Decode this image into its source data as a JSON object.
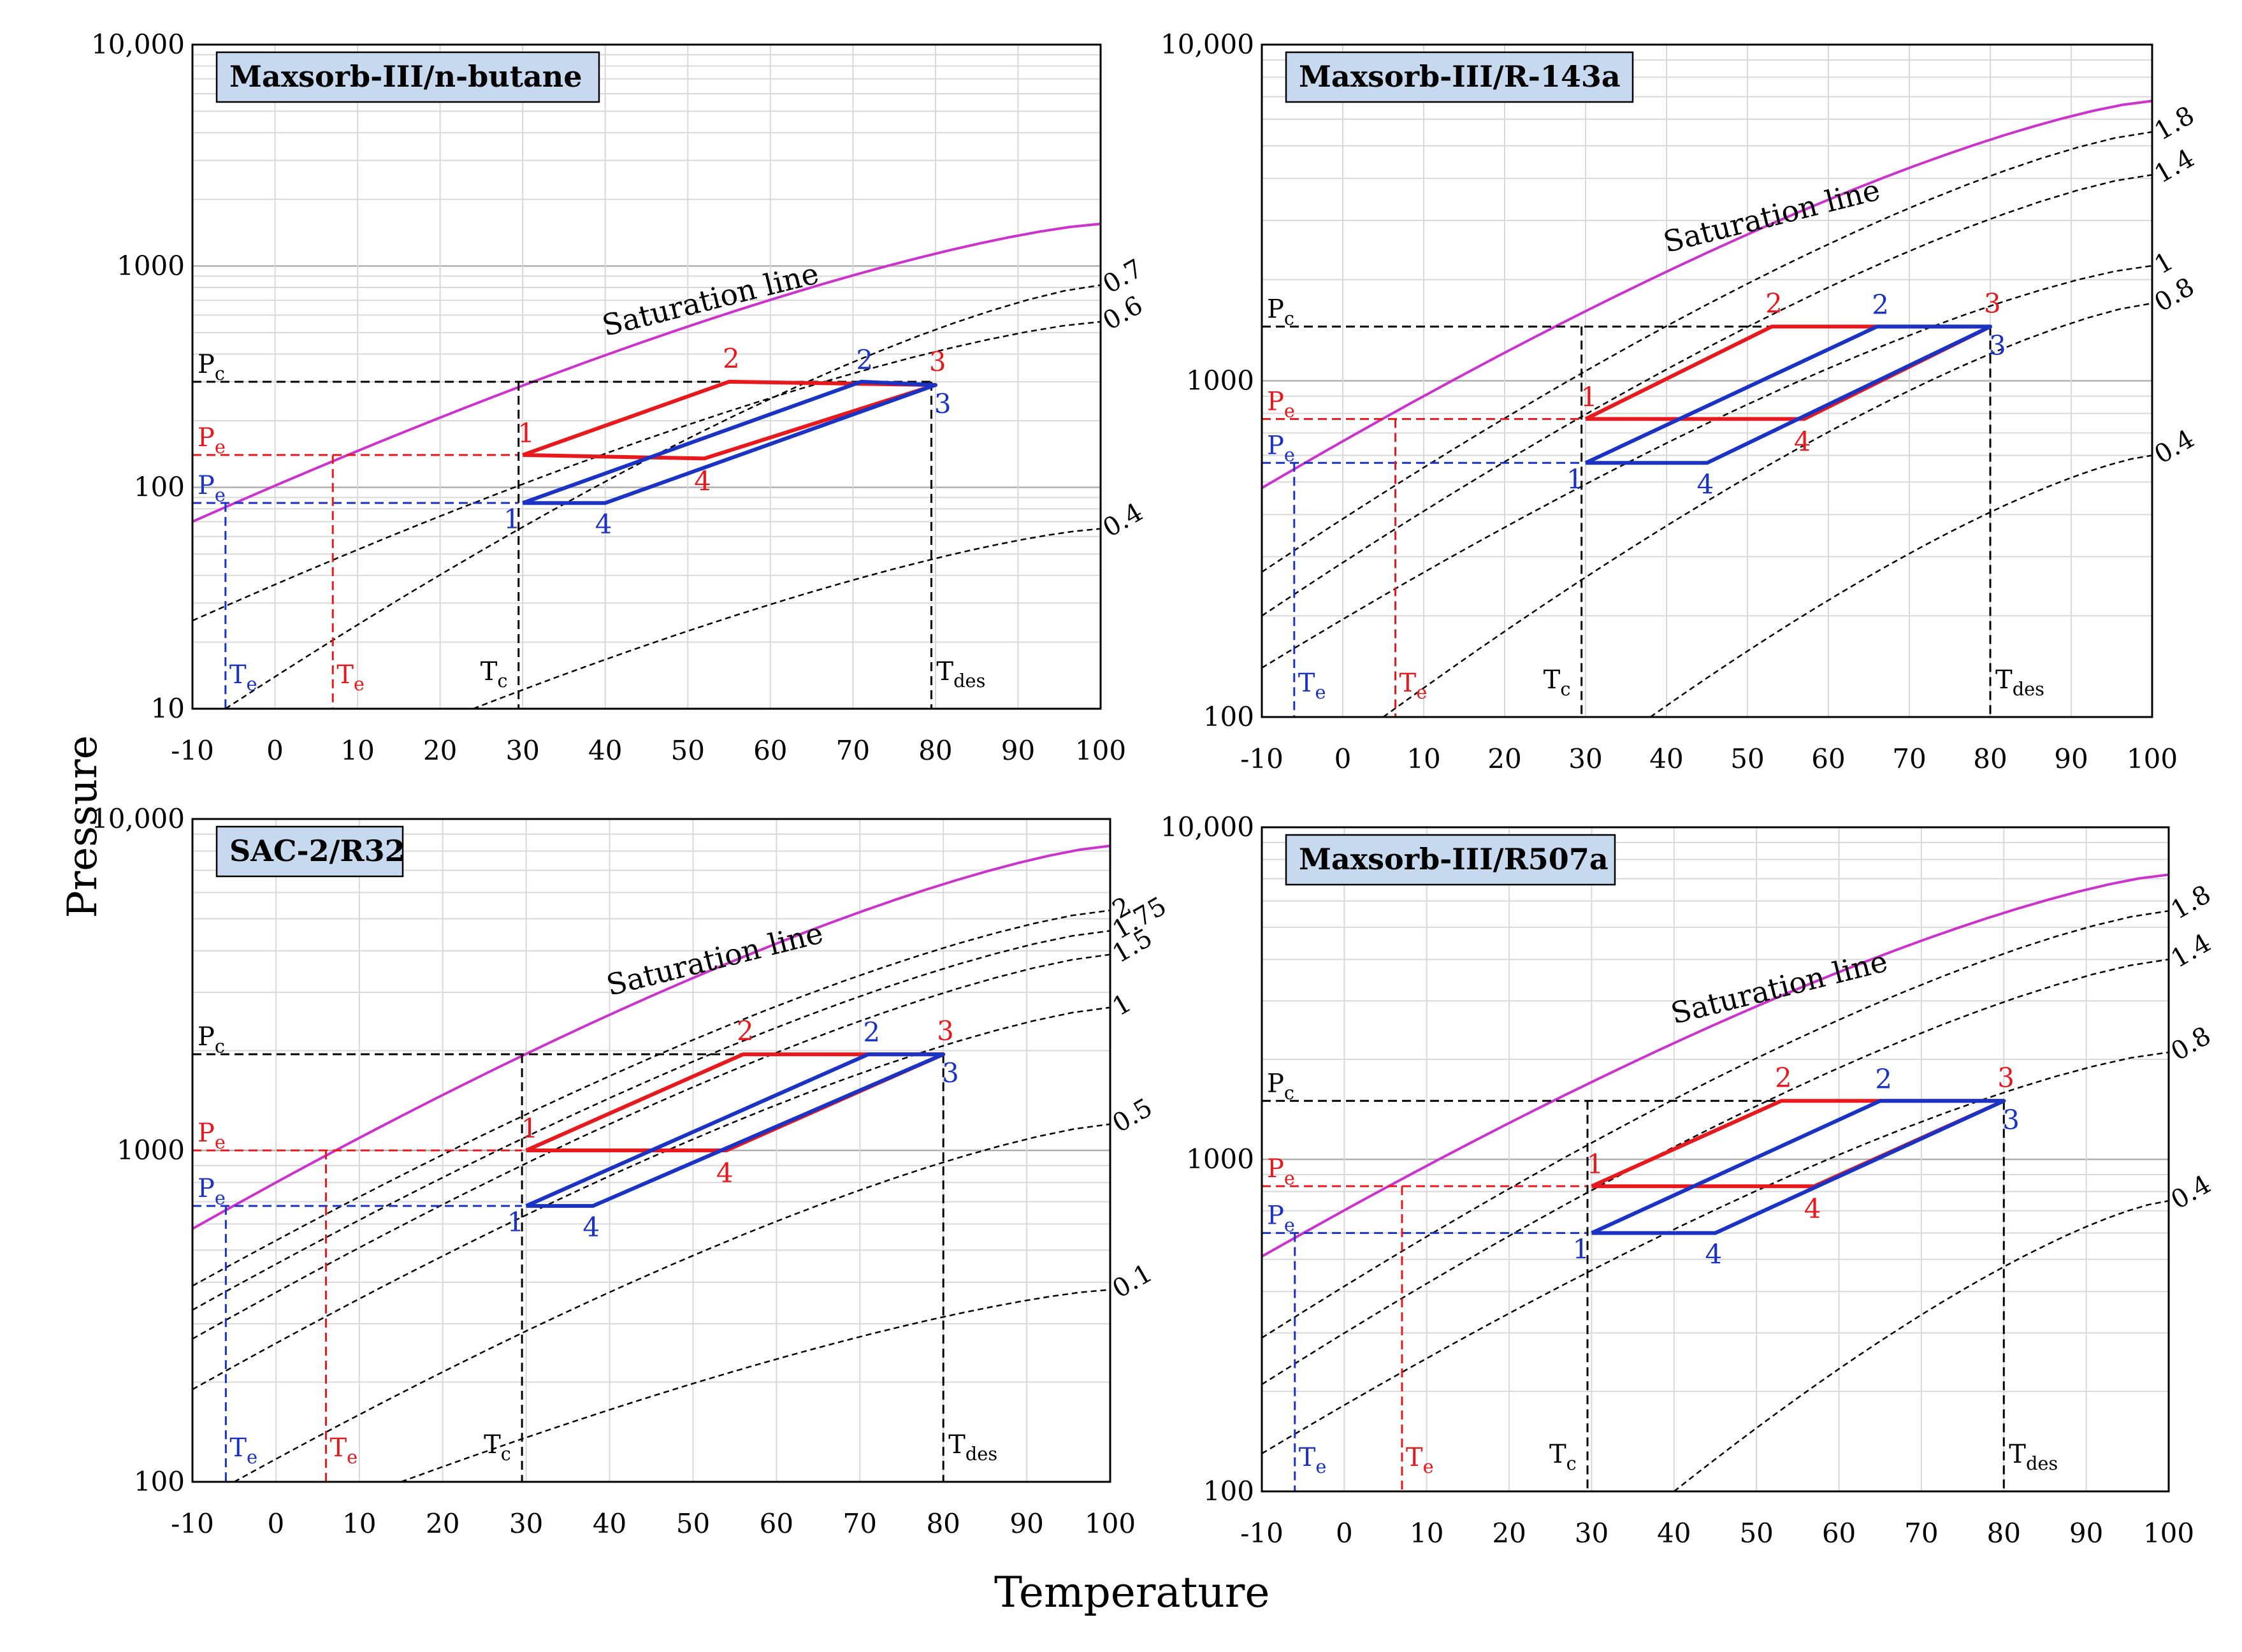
{
  "figure": {
    "ylabel": "Pressure",
    "xlabel": "Temperature"
  },
  "colors": {
    "saturation": "#cc33cc",
    "red": "#e8191d",
    "blue": "#1a33c4",
    "box_fill": "#c6d9ee",
    "grid": "#d9d9d9"
  },
  "chart_data": [
    {
      "type": "line",
      "title": "Maxsorb-III/n-butane",
      "xlabel": "",
      "ylabel": "",
      "scale_y": "log",
      "xlim": [
        -10,
        100
      ],
      "ylim": [
        10,
        10000
      ],
      "x_ticks": [
        "-10",
        "0",
        "10",
        "20",
        "30",
        "40",
        "50",
        "60",
        "70",
        "80",
        "90",
        "100"
      ],
      "y_ticks": [
        {
          "v": 10,
          "t": "10"
        },
        {
          "v": 100,
          "t": "100"
        },
        {
          "v": 1000,
          "t": "1000"
        },
        {
          "v": 10000,
          "t": "10,000"
        }
      ],
      "saturation_label": "Saturation line",
      "saturation": {
        "x": [
          -10,
          100
        ],
        "y": [
          70,
          1550
        ]
      },
      "isosteres": [
        {
          "label": "0.7",
          "x": [
            -6,
            100
          ],
          "y": [
            10,
            820
          ]
        },
        {
          "label": "0.6",
          "x": [
            -10,
            100
          ],
          "y": [
            25,
            560
          ]
        },
        {
          "label": "0.4",
          "x": [
            24,
            100
          ],
          "y": [
            10,
            65
          ]
        }
      ],
      "Pc": 300,
      "Pe_red": 140,
      "Pe_blue": 85,
      "Tc": 29.5,
      "Tdes": 79.5,
      "Te_red": 7,
      "Te_blue": -6,
      "red_cycle": [
        [
          30,
          140
        ],
        [
          55,
          300
        ],
        [
          80,
          290
        ],
        [
          52,
          135
        ],
        [
          30,
          140
        ]
      ],
      "blue_cycle": [
        [
          30,
          85
        ],
        [
          71,
          300
        ],
        [
          80,
          290
        ],
        [
          40,
          85
        ],
        [
          30,
          85
        ]
      ],
      "red_labels": [
        {
          "t": "1",
          "x": 30,
          "y": 140
        },
        {
          "t": "2",
          "x": 55,
          "y": 300
        },
        {
          "t": "3",
          "x": 80,
          "y": 290
        },
        {
          "t": "4",
          "x": 52,
          "y": 135
        }
      ],
      "blue_labels": [
        {
          "t": "1",
          "x": 30,
          "y": 85
        },
        {
          "t": "2",
          "x": 71,
          "y": 300
        },
        {
          "t": "3",
          "x": 80,
          "y": 290
        },
        {
          "t": "4",
          "x": 40,
          "y": 85
        }
      ],
      "guide_labels": {
        "Pc": "P",
        "Pe": "P",
        "Te": "T",
        "Tc": "T",
        "Tdes": "T",
        "sub_c": "c",
        "sub_e": "e",
        "sub_des": "des"
      }
    },
    {
      "type": "line",
      "title": "Maxsorb-III/R-143a",
      "xlabel": "",
      "ylabel": "",
      "scale_y": "log",
      "xlim": [
        -10,
        100
      ],
      "ylim": [
        100,
        10000
      ],
      "x_ticks": [
        "-10",
        "0",
        "10",
        "20",
        "30",
        "40",
        "50",
        "60",
        "70",
        "80",
        "90",
        "100"
      ],
      "y_ticks": [
        {
          "v": 100,
          "t": "100"
        },
        {
          "v": 1000,
          "t": "1000"
        },
        {
          "v": 10000,
          "t": "10,000"
        }
      ],
      "saturation_label": "Saturation line",
      "saturation": {
        "x": [
          -10,
          100
        ],
        "y": [
          480,
          6800
        ]
      },
      "isosteres": [
        {
          "label": "1.8",
          "x": [
            -10,
            100
          ],
          "y": [
            270,
            5500
          ]
        },
        {
          "label": "1.4",
          "x": [
            -10,
            100
          ],
          "y": [
            200,
            4100
          ]
        },
        {
          "label": "1",
          "x": [
            -10,
            100
          ],
          "y": [
            140,
            2200
          ]
        },
        {
          "label": "0.8",
          "x": [
            5,
            100
          ],
          "y": [
            100,
            1700
          ]
        },
        {
          "label": "0.4",
          "x": [
            38,
            100
          ],
          "y": [
            100,
            600
          ]
        }
      ],
      "Pc": 1450,
      "Pe_red": 770,
      "Pe_blue": 570,
      "Tc": 29.5,
      "Tdes": 80,
      "Te_red": 6.5,
      "Te_blue": -6,
      "red_cycle": [
        [
          30,
          770
        ],
        [
          53,
          1450
        ],
        [
          80,
          1450
        ],
        [
          57,
          770
        ],
        [
          30,
          770
        ]
      ],
      "blue_cycle": [
        [
          30,
          570
        ],
        [
          66,
          1450
        ],
        [
          80,
          1450
        ],
        [
          45,
          570
        ],
        [
          30,
          570
        ]
      ],
      "red_labels": [
        {
          "t": "1",
          "x": 30,
          "y": 770
        },
        {
          "t": "2",
          "x": 53,
          "y": 1450
        },
        {
          "t": "3",
          "x": 80,
          "y": 1450
        },
        {
          "t": "4",
          "x": 57,
          "y": 770
        }
      ],
      "blue_labels": [
        {
          "t": "1",
          "x": 30,
          "y": 570
        },
        {
          "t": "2",
          "x": 66,
          "y": 1450
        },
        {
          "t": "3",
          "x": 80,
          "y": 1450
        },
        {
          "t": "4",
          "x": 45,
          "y": 570
        }
      ],
      "guide_labels": {
        "Pc": "P",
        "Pe": "P",
        "Te": "T",
        "Tc": "T",
        "Tdes": "T",
        "sub_c": "c",
        "sub_e": "e",
        "sub_des": "des"
      }
    },
    {
      "type": "line",
      "title": "SAC-2/R32",
      "xlabel": "",
      "ylabel": "",
      "scale_y": "log",
      "xlim": [
        -10,
        100
      ],
      "ylim": [
        100,
        10000
      ],
      "x_ticks": [
        "-10",
        "0",
        "10",
        "20",
        "30",
        "40",
        "50",
        "60",
        "70",
        "80",
        "90",
        "100"
      ],
      "y_ticks": [
        {
          "v": 100,
          "t": "100"
        },
        {
          "v": 1000,
          "t": "1000"
        },
        {
          "v": 10000,
          "t": "10,000"
        }
      ],
      "saturation_label": "Saturation line",
      "saturation": {
        "x": [
          -10,
          100
        ],
        "y": [
          580,
          8300
        ]
      },
      "isosteres": [
        {
          "label": "2",
          "x": [
            -10,
            100
          ],
          "y": [
            390,
            5300
          ]
        },
        {
          "label": "1.75",
          "x": [
            -10,
            100
          ],
          "y": [
            330,
            4600
          ]
        },
        {
          "label": "1.5",
          "x": [
            -10,
            100
          ],
          "y": [
            270,
            3900
          ]
        },
        {
          "label": "1",
          "x": [
            -10,
            100
          ],
          "y": [
            190,
            2700
          ]
        },
        {
          "label": "0.5",
          "x": [
            -5,
            100
          ],
          "y": [
            100,
            1200
          ]
        },
        {
          "label": "0.1",
          "x": [
            15,
            100
          ],
          "y": [
            100,
            380
          ]
        }
      ],
      "Pc": 1950,
      "Pe_red": 1000,
      "Pe_blue": 680,
      "Tc": 29.5,
      "Tdes": 80,
      "Te_red": 6,
      "Te_blue": -6,
      "red_cycle": [
        [
          30,
          1000
        ],
        [
          56,
          1950
        ],
        [
          80,
          1950
        ],
        [
          54,
          1000
        ],
        [
          30,
          1000
        ]
      ],
      "blue_cycle": [
        [
          30,
          680
        ],
        [
          71,
          1950
        ],
        [
          80,
          1950
        ],
        [
          38,
          680
        ],
        [
          30,
          680
        ]
      ],
      "red_labels": [
        {
          "t": "1",
          "x": 30,
          "y": 1000
        },
        {
          "t": "2",
          "x": 56,
          "y": 1950
        },
        {
          "t": "3",
          "x": 80,
          "y": 1950
        },
        {
          "t": "4",
          "x": 54,
          "y": 1000
        }
      ],
      "blue_labels": [
        {
          "t": "1",
          "x": 30,
          "y": 680
        },
        {
          "t": "2",
          "x": 71,
          "y": 1950
        },
        {
          "t": "3",
          "x": 80,
          "y": 1950
        },
        {
          "t": "4",
          "x": 38,
          "y": 680
        }
      ],
      "guide_labels": {
        "Pc": "P",
        "Pe": "P",
        "Te": "T",
        "Tc": "T",
        "Tdes": "T",
        "sub_c": "c",
        "sub_e": "e",
        "sub_des": "des"
      }
    },
    {
      "type": "line",
      "title": "Maxsorb-III/R507a",
      "xlabel": "",
      "ylabel": "",
      "scale_y": "log",
      "xlim": [
        -10,
        100
      ],
      "ylim": [
        100,
        10000
      ],
      "x_ticks": [
        "-10",
        "0",
        "10",
        "20",
        "30",
        "40",
        "50",
        "60",
        "70",
        "80",
        "90",
        "100"
      ],
      "y_ticks": [
        {
          "v": 100,
          "t": "100"
        },
        {
          "v": 1000,
          "t": "1000"
        },
        {
          "v": 10000,
          "t": "10,000"
        }
      ],
      "saturation_label": "Saturation line",
      "saturation": {
        "x": [
          -10,
          100
        ],
        "y": [
          510,
          7200
        ]
      },
      "isosteres": [
        {
          "label": "1.8",
          "x": [
            -10,
            100
          ],
          "y": [
            290,
            5600
          ]
        },
        {
          "label": "1.4",
          "x": [
            -10,
            100
          ],
          "y": [
            210,
            4000
          ]
        },
        {
          "label": "0.8",
          "x": [
            -10,
            100
          ],
          "y": [
            130,
            2100
          ]
        },
        {
          "label": "0.4",
          "x": [
            40,
            100
          ],
          "y": [
            100,
            750
          ]
        }
      ],
      "Pc": 1500,
      "Pe_red": 830,
      "Pe_blue": 600,
      "Tc": 29.5,
      "Tdes": 80,
      "Te_red": 7,
      "Te_blue": -6,
      "red_cycle": [
        [
          30,
          830
        ],
        [
          53,
          1500
        ],
        [
          80,
          1500
        ],
        [
          57,
          830
        ],
        [
          30,
          830
        ]
      ],
      "blue_cycle": [
        [
          30,
          600
        ],
        [
          65,
          1500
        ],
        [
          80,
          1500
        ],
        [
          45,
          600
        ],
        [
          30,
          600
        ]
      ],
      "red_labels": [
        {
          "t": "1",
          "x": 30,
          "y": 830
        },
        {
          "t": "2",
          "x": 53,
          "y": 1500
        },
        {
          "t": "3",
          "x": 80,
          "y": 1500
        },
        {
          "t": "4",
          "x": 57,
          "y": 830
        }
      ],
      "blue_labels": [
        {
          "t": "1",
          "x": 30,
          "y": 600
        },
        {
          "t": "2",
          "x": 65,
          "y": 1500
        },
        {
          "t": "3",
          "x": 80,
          "y": 1500
        },
        {
          "t": "4",
          "x": 45,
          "y": 600
        }
      ],
      "guide_labels": {
        "Pc": "P",
        "Pe": "P",
        "Te": "T",
        "Tc": "T",
        "Tdes": "T",
        "sub_c": "c",
        "sub_e": "e",
        "sub_des": "des"
      }
    }
  ]
}
